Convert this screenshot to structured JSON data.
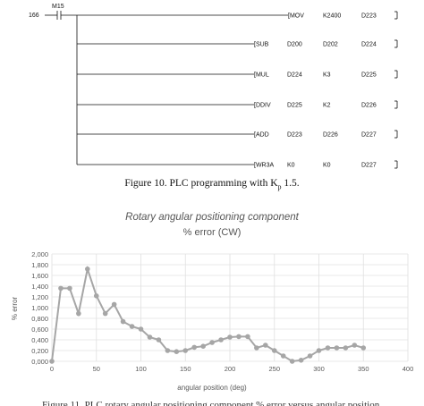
{
  "ladder": {
    "step_number": "166",
    "contact_label": "M15",
    "instructions": [
      {
        "op": "[MOV",
        "arg1": "K2400",
        "arg2": "D223",
        "arg3": ""
      },
      {
        "op": "[SUB",
        "arg1": "D200",
        "arg2": "D202",
        "arg3": "D224"
      },
      {
        "op": "[MUL",
        "arg1": "D224",
        "arg2": "K3",
        "arg3": "D225"
      },
      {
        "op": "[DDIV",
        "arg1": "D225",
        "arg2": "K2",
        "arg3": "D226"
      },
      {
        "op": "[ADD",
        "arg1": "D223",
        "arg2": "D226",
        "arg3": "D227"
      },
      {
        "op": "[WR3A",
        "arg1": "K0",
        "arg2": "K0",
        "arg3": "D227"
      }
    ]
  },
  "figure10_caption": {
    "text": "Figure 10. PLC programming with K",
    "subscript": "p",
    "suffix": " 1.5."
  },
  "figure11_caption_partial": "Figure 11. PLC rotary angular positioning component % error versus angular position.",
  "chart_data": {
    "type": "line",
    "title": "Rotary angular positioning component",
    "subtitle": "% error (CW)",
    "xlabel": "angular position (deg)",
    "ylabel": "% error",
    "xlim": [
      0,
      400
    ],
    "ylim": [
      0,
      2
    ],
    "x_ticks": [
      "0",
      "50",
      "100",
      "150",
      "200",
      "250",
      "300",
      "350",
      "400"
    ],
    "y_ticks": [
      "0,000",
      "0,200",
      "0,400",
      "0,600",
      "0,800",
      "1,000",
      "1,200",
      "1,400",
      "1,600",
      "1,800",
      "2,000"
    ],
    "grid": true,
    "color": "#a6a6a6",
    "series": [
      {
        "x": [
          0,
          10,
          20,
          30,
          40,
          50,
          60,
          70,
          80,
          90,
          100,
          110,
          120,
          130,
          140,
          150,
          160,
          170,
          180,
          190,
          200,
          210,
          220,
          230,
          240,
          250,
          260,
          270,
          280,
          290,
          300,
          310,
          320,
          330,
          340,
          350
        ],
        "y": [
          0.0,
          1.36,
          1.36,
          0.89,
          1.72,
          1.22,
          0.89,
          1.06,
          0.74,
          0.65,
          0.6,
          0.45,
          0.4,
          0.2,
          0.18,
          0.2,
          0.26,
          0.28,
          0.35,
          0.4,
          0.45,
          0.46,
          0.46,
          0.25,
          0.3,
          0.2,
          0.1,
          0.0,
          0.02,
          0.1,
          0.2,
          0.25,
          0.25,
          0.25,
          0.3,
          0.25
        ]
      }
    ]
  }
}
